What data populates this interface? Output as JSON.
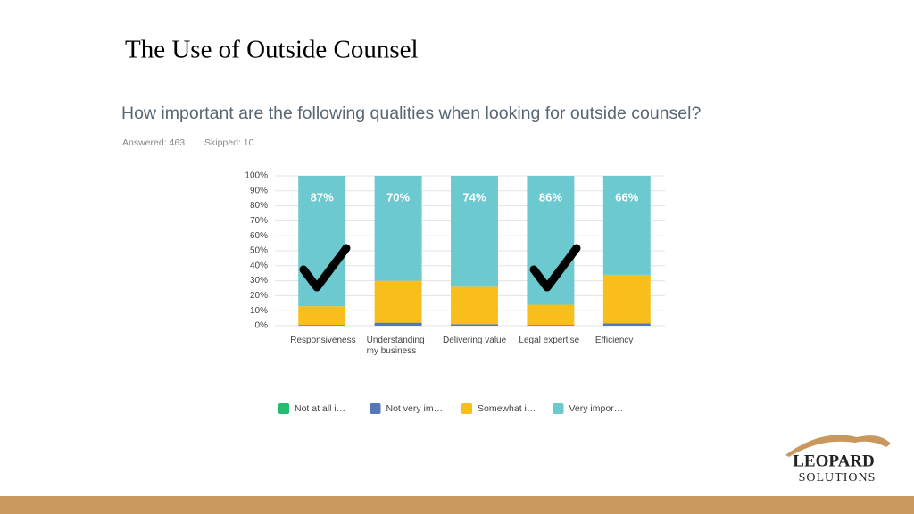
{
  "slide": {
    "title": "The Use of Outside Counsel",
    "question": "How important are the following qualities when looking for outside counsel?",
    "answered": "Answered: 463",
    "skipped": "Skipped: 10",
    "logo_top": "LEOPARD",
    "logo_bottom": "SOLUTIONS"
  },
  "chart_data": {
    "type": "stacked_bar",
    "categories": [
      "Responsiveness",
      "Understanding my business",
      "Delivering value",
      "Legal expertise",
      "Efficiency"
    ],
    "series": [
      {
        "name": "Not at all i…",
        "color": "#1fbe6e",
        "values": [
          0,
          0,
          0,
          0,
          0
        ]
      },
      {
        "name": "Not very im…",
        "color": "#5477b8",
        "values": [
          0.5,
          2,
          1,
          0.5,
          1.5
        ]
      },
      {
        "name": "Somewhat i…",
        "color": "#f8be1c",
        "values": [
          12.5,
          28,
          25,
          13.5,
          32.5
        ]
      },
      {
        "name": "Very impor…",
        "color": "#6cc9d0",
        "values": [
          87,
          70,
          74,
          86,
          66
        ],
        "value_labels": [
          "87%",
          "70%",
          "74%",
          "86%",
          "66%"
        ]
      }
    ],
    "ylim": [
      0,
      100
    ],
    "yticks": [
      {
        "value": 0,
        "label": "0%"
      },
      {
        "value": 10,
        "label": "10%"
      },
      {
        "value": 20,
        "label": "20%"
      },
      {
        "value": 30,
        "label": "30%"
      },
      {
        "value": 40,
        "label": "40%"
      },
      {
        "value": 50,
        "label": "50%"
      },
      {
        "value": 60,
        "label": "60%"
      },
      {
        "value": 70,
        "label": "70%"
      },
      {
        "value": 80,
        "label": "80%"
      },
      {
        "value": 90,
        "label": "90%"
      },
      {
        "value": 100,
        "label": "100%"
      }
    ],
    "grid": true,
    "legend": "bottom"
  }
}
